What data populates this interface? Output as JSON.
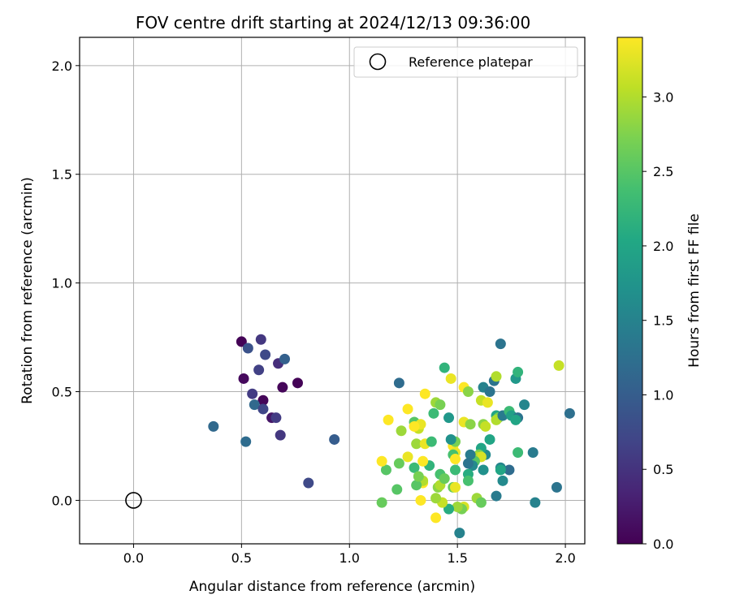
{
  "chart_data": {
    "type": "scatter",
    "title": "FOV centre drift starting at 2024/12/13 09:36:00",
    "xlabel": "Angular distance from reference (arcmin)",
    "ylabel": "Rotation from reference (arcmin)",
    "xlim": [
      -0.25,
      2.09
    ],
    "ylim": [
      -0.2,
      2.13
    ],
    "xticks": [
      "0.0",
      "0.5",
      "1.0",
      "1.5",
      "2.0"
    ],
    "yticks": [
      "0.0",
      "0.5",
      "1.0",
      "1.5",
      "2.0"
    ],
    "grid": true,
    "legend_position": "top-right",
    "legend": [
      {
        "label": "Reference platepar",
        "marker": "open-circle"
      }
    ],
    "reference_point": {
      "x": 0.0,
      "y": 0.0
    },
    "colorbar": {
      "label": "Hours from first FF file",
      "colormap": "viridis",
      "range": [
        0.0,
        3.4
      ],
      "ticks": [
        "0.0",
        "0.5",
        "1.0",
        "1.5",
        "2.0",
        "2.5",
        "3.0"
      ]
    },
    "points": [
      {
        "x": 0.5,
        "y": 0.73,
        "c": 0.02
      },
      {
        "x": 0.51,
        "y": 0.56,
        "c": 0.08
      },
      {
        "x": 0.53,
        "y": 0.7,
        "c": 0.85
      },
      {
        "x": 0.59,
        "y": 0.74,
        "c": 0.55
      },
      {
        "x": 0.61,
        "y": 0.67,
        "c": 0.75
      },
      {
        "x": 0.58,
        "y": 0.6,
        "c": 0.65
      },
      {
        "x": 0.67,
        "y": 0.63,
        "c": 0.45
      },
      {
        "x": 0.7,
        "y": 0.65,
        "c": 1.05
      },
      {
        "x": 0.55,
        "y": 0.49,
        "c": 0.6
      },
      {
        "x": 0.6,
        "y": 0.46,
        "c": 0.05
      },
      {
        "x": 0.69,
        "y": 0.52,
        "c": 0.05
      },
      {
        "x": 0.76,
        "y": 0.54,
        "c": 0.03
      },
      {
        "x": 0.56,
        "y": 0.44,
        "c": 1.15
      },
      {
        "x": 0.6,
        "y": 0.42,
        "c": 0.7
      },
      {
        "x": 0.64,
        "y": 0.38,
        "c": 0.2
      },
      {
        "x": 0.66,
        "y": 0.38,
        "c": 0.6
      },
      {
        "x": 0.68,
        "y": 0.3,
        "c": 0.55
      },
      {
        "x": 0.37,
        "y": 0.34,
        "c": 1.15
      },
      {
        "x": 0.52,
        "y": 0.27,
        "c": 1.2
      },
      {
        "x": 0.93,
        "y": 0.28,
        "c": 1.0
      },
      {
        "x": 0.81,
        "y": 0.08,
        "c": 0.75
      },
      {
        "x": 1.23,
        "y": 0.54,
        "c": 1.2
      },
      {
        "x": 1.44,
        "y": 0.61,
        "c": 2.2
      },
      {
        "x": 1.47,
        "y": 0.56,
        "c": 3.3
      },
      {
        "x": 1.53,
        "y": 0.52,
        "c": 3.4
      },
      {
        "x": 1.55,
        "y": 0.5,
        "c": 2.8
      },
      {
        "x": 1.62,
        "y": 0.52,
        "c": 1.5
      },
      {
        "x": 1.65,
        "y": 0.5,
        "c": 1.3
      },
      {
        "x": 1.67,
        "y": 0.55,
        "c": 1.3
      },
      {
        "x": 1.68,
        "y": 0.57,
        "c": 3.0
      },
      {
        "x": 1.7,
        "y": 0.72,
        "c": 1.3
      },
      {
        "x": 1.77,
        "y": 0.56,
        "c": 1.8
      },
      {
        "x": 1.78,
        "y": 0.59,
        "c": 2.2
      },
      {
        "x": 1.97,
        "y": 0.62,
        "c": 3.1
      },
      {
        "x": 2.02,
        "y": 0.4,
        "c": 1.25
      },
      {
        "x": 1.35,
        "y": 0.49,
        "c": 3.4
      },
      {
        "x": 1.4,
        "y": 0.45,
        "c": 2.9
      },
      {
        "x": 1.42,
        "y": 0.44,
        "c": 2.7
      },
      {
        "x": 1.39,
        "y": 0.4,
        "c": 2.3
      },
      {
        "x": 1.27,
        "y": 0.42,
        "c": 3.4
      },
      {
        "x": 1.18,
        "y": 0.37,
        "c": 3.4
      },
      {
        "x": 1.24,
        "y": 0.32,
        "c": 2.9
      },
      {
        "x": 1.3,
        "y": 0.36,
        "c": 2.5
      },
      {
        "x": 1.32,
        "y": 0.33,
        "c": 3.1
      },
      {
        "x": 1.33,
        "y": 0.35,
        "c": 3.3
      },
      {
        "x": 1.3,
        "y": 0.34,
        "c": 3.4
      },
      {
        "x": 1.46,
        "y": 0.38,
        "c": 1.8
      },
      {
        "x": 1.53,
        "y": 0.36,
        "c": 3.3
      },
      {
        "x": 1.56,
        "y": 0.35,
        "c": 2.8
      },
      {
        "x": 1.61,
        "y": 0.46,
        "c": 3.1
      },
      {
        "x": 1.64,
        "y": 0.45,
        "c": 3.3
      },
      {
        "x": 1.62,
        "y": 0.35,
        "c": 2.8
      },
      {
        "x": 1.63,
        "y": 0.34,
        "c": 3.1
      },
      {
        "x": 1.65,
        "y": 0.28,
        "c": 2.0
      },
      {
        "x": 1.68,
        "y": 0.39,
        "c": 2.0
      },
      {
        "x": 1.69,
        "y": 0.38,
        "c": 2.7
      },
      {
        "x": 1.68,
        "y": 0.37,
        "c": 3.0
      },
      {
        "x": 1.71,
        "y": 0.39,
        "c": 1.4
      },
      {
        "x": 1.74,
        "y": 0.41,
        "c": 2.3
      },
      {
        "x": 1.75,
        "y": 0.39,
        "c": 1.9
      },
      {
        "x": 1.78,
        "y": 0.38,
        "c": 1.3
      },
      {
        "x": 1.77,
        "y": 0.37,
        "c": 2.0
      },
      {
        "x": 1.81,
        "y": 0.44,
        "c": 1.55
      },
      {
        "x": 1.78,
        "y": 0.22,
        "c": 2.3
      },
      {
        "x": 1.85,
        "y": 0.22,
        "c": 1.4
      },
      {
        "x": 1.96,
        "y": 0.06,
        "c": 1.3
      },
      {
        "x": 1.86,
        "y": -0.01,
        "c": 1.5
      },
      {
        "x": 1.74,
        "y": 0.14,
        "c": 1.2
      },
      {
        "x": 1.7,
        "y": 0.15,
        "c": 1.55
      },
      {
        "x": 1.7,
        "y": 0.14,
        "c": 2.0
      },
      {
        "x": 1.71,
        "y": 0.09,
        "c": 1.6
      },
      {
        "x": 1.68,
        "y": 0.02,
        "c": 1.4
      },
      {
        "x": 1.63,
        "y": 0.21,
        "c": 1.6
      },
      {
        "x": 1.61,
        "y": 0.24,
        "c": 2.0
      },
      {
        "x": 1.6,
        "y": 0.21,
        "c": 2.7
      },
      {
        "x": 1.59,
        "y": 0.2,
        "c": 3.0
      },
      {
        "x": 1.61,
        "y": 0.2,
        "c": 3.2
      },
      {
        "x": 1.57,
        "y": 0.2,
        "c": 3.0
      },
      {
        "x": 1.58,
        "y": 0.18,
        "c": 2.5
      },
      {
        "x": 1.56,
        "y": 0.21,
        "c": 1.4
      },
      {
        "x": 1.57,
        "y": 0.16,
        "c": 1.6
      },
      {
        "x": 1.55,
        "y": 0.17,
        "c": 1.3
      },
      {
        "x": 1.62,
        "y": 0.14,
        "c": 1.7
      },
      {
        "x": 1.55,
        "y": 0.12,
        "c": 2.1
      },
      {
        "x": 1.55,
        "y": 0.09,
        "c": 2.4
      },
      {
        "x": 1.59,
        "y": 0.01,
        "c": 2.9
      },
      {
        "x": 1.61,
        "y": -0.01,
        "c": 2.6
      },
      {
        "x": 1.53,
        "y": -0.03,
        "c": 3.2
      },
      {
        "x": 1.52,
        "y": -0.04,
        "c": 2.7
      },
      {
        "x": 1.5,
        "y": -0.03,
        "c": 2.9
      },
      {
        "x": 1.51,
        "y": -0.15,
        "c": 1.5
      },
      {
        "x": 1.46,
        "y": -0.04,
        "c": 2.1
      },
      {
        "x": 1.48,
        "y": 0.06,
        "c": 2.6
      },
      {
        "x": 1.49,
        "y": 0.06,
        "c": 3.3
      },
      {
        "x": 1.43,
        "y": -0.01,
        "c": 3.1
      },
      {
        "x": 1.4,
        "y": -0.08,
        "c": 3.4
      },
      {
        "x": 1.4,
        "y": 0.01,
        "c": 2.9
      },
      {
        "x": 1.41,
        "y": 0.06,
        "c": 2.8
      },
      {
        "x": 1.42,
        "y": 0.07,
        "c": 3.0
      },
      {
        "x": 1.42,
        "y": 0.12,
        "c": 2.4
      },
      {
        "x": 1.44,
        "y": 0.1,
        "c": 2.6
      },
      {
        "x": 1.37,
        "y": 0.16,
        "c": 2.2
      },
      {
        "x": 1.34,
        "y": 0.08,
        "c": 3.4
      },
      {
        "x": 1.34,
        "y": 0.09,
        "c": 3.0
      },
      {
        "x": 1.33,
        "y": 0.0,
        "c": 3.4
      },
      {
        "x": 1.31,
        "y": 0.07,
        "c": 2.5
      },
      {
        "x": 1.3,
        "y": 0.15,
        "c": 2.3
      },
      {
        "x": 1.32,
        "y": 0.11,
        "c": 2.7
      },
      {
        "x": 1.34,
        "y": 0.18,
        "c": 3.4
      },
      {
        "x": 1.27,
        "y": 0.2,
        "c": 3.3
      },
      {
        "x": 1.23,
        "y": 0.17,
        "c": 2.6
      },
      {
        "x": 1.17,
        "y": 0.14,
        "c": 2.5
      },
      {
        "x": 1.15,
        "y": 0.18,
        "c": 3.4
      },
      {
        "x": 1.15,
        "y": -0.01,
        "c": 2.6
      },
      {
        "x": 1.22,
        "y": 0.05,
        "c": 2.5
      },
      {
        "x": 1.31,
        "y": 0.26,
        "c": 2.9
      },
      {
        "x": 1.35,
        "y": 0.26,
        "c": 3.3
      },
      {
        "x": 1.38,
        "y": 0.27,
        "c": 2.3
      },
      {
        "x": 1.48,
        "y": 0.25,
        "c": 3.4
      },
      {
        "x": 1.49,
        "y": 0.27,
        "c": 2.7
      },
      {
        "x": 1.47,
        "y": 0.28,
        "c": 1.7
      },
      {
        "x": 1.49,
        "y": 0.22,
        "c": 3.3
      },
      {
        "x": 1.48,
        "y": 0.21,
        "c": 2.4
      },
      {
        "x": 1.49,
        "y": 0.14,
        "c": 2.3
      },
      {
        "x": 1.49,
        "y": 0.19,
        "c": 3.4
      }
    ]
  }
}
